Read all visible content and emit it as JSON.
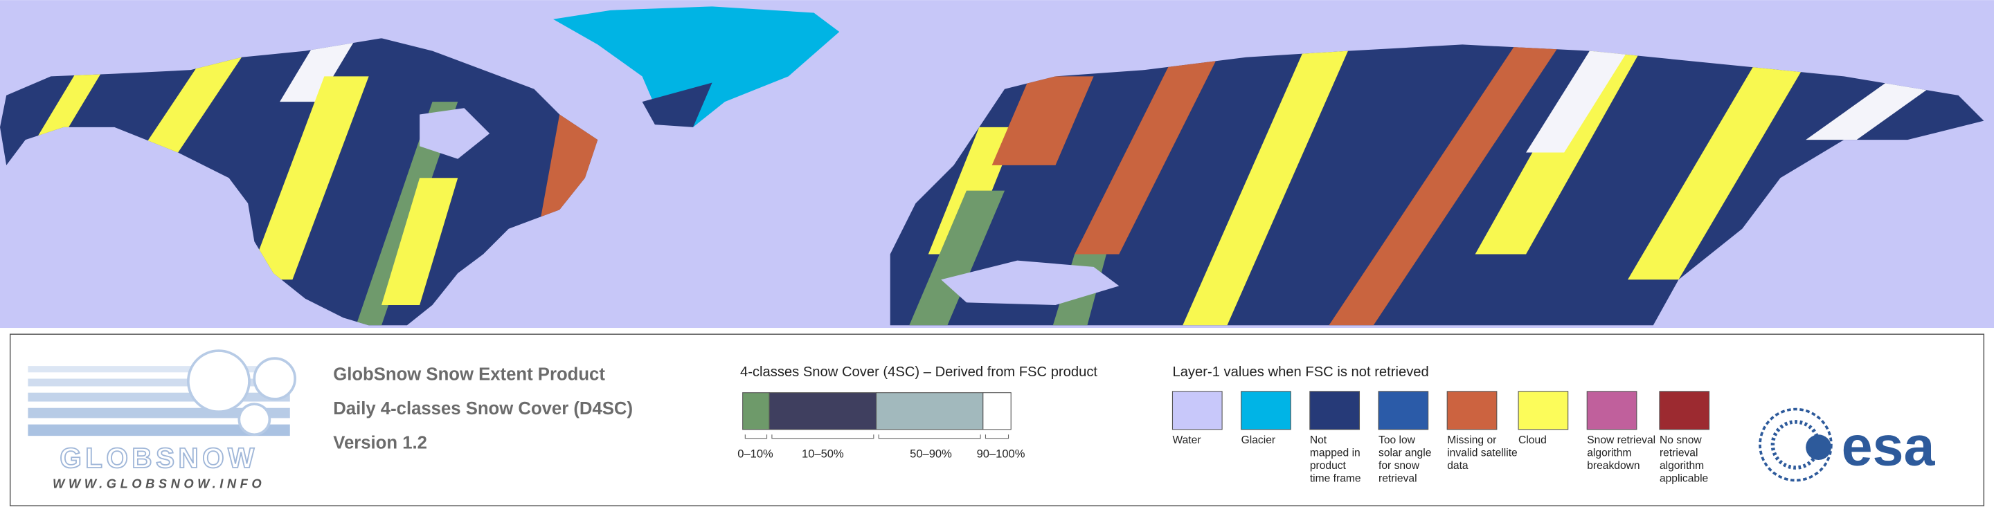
{
  "logo": {
    "name": "GLOBSNOW",
    "url": "WWW.GLOBSNOW.INFO"
  },
  "product": {
    "lines": [
      "GlobSnow Snow Extent Product",
      "Daily 4-classes Snow Cover (D4SC)",
      "Version 1.2"
    ]
  },
  "snow_cover_legend": {
    "title": "4-classes Snow Cover (4SC) – Derived from FSC product",
    "classes": [
      {
        "label": "0–10%",
        "color": "#6e9a6a"
      },
      {
        "label": "10–50%",
        "color": "#3f3f5f"
      },
      {
        "label": "50–90%",
        "color": "#a2b9bd"
      },
      {
        "label": "90–100%",
        "color": "#ffffff"
      }
    ]
  },
  "layer1_legend": {
    "title": "Layer-1 values when FSC is not retrieved",
    "items": [
      {
        "label": [
          "Water"
        ],
        "color": "#c8c8fa"
      },
      {
        "label": [
          "Glacier"
        ],
        "color": "#00b4e6"
      },
      {
        "label": [
          "Not",
          "mapped in",
          "product",
          "time frame"
        ],
        "color": "#263a78"
      },
      {
        "label": [
          "Too low",
          "solar angle",
          "for snow",
          "retrieval"
        ],
        "color": "#2b5ba8"
      },
      {
        "label": [
          "Missing or",
          "invalid satellite",
          "data"
        ],
        "color": "#cc6340"
      },
      {
        "label": [
          "Cloud"
        ],
        "color": "#fcfc5a"
      },
      {
        "label": [
          "Snow retrieval",
          "algorithm",
          "breakdown"
        ],
        "color": "#c0609c"
      },
      {
        "label": [
          "No snow",
          "retrieval",
          "algorithm",
          "applicable"
        ],
        "color": "#9c2a30"
      }
    ]
  },
  "agency": "esa"
}
